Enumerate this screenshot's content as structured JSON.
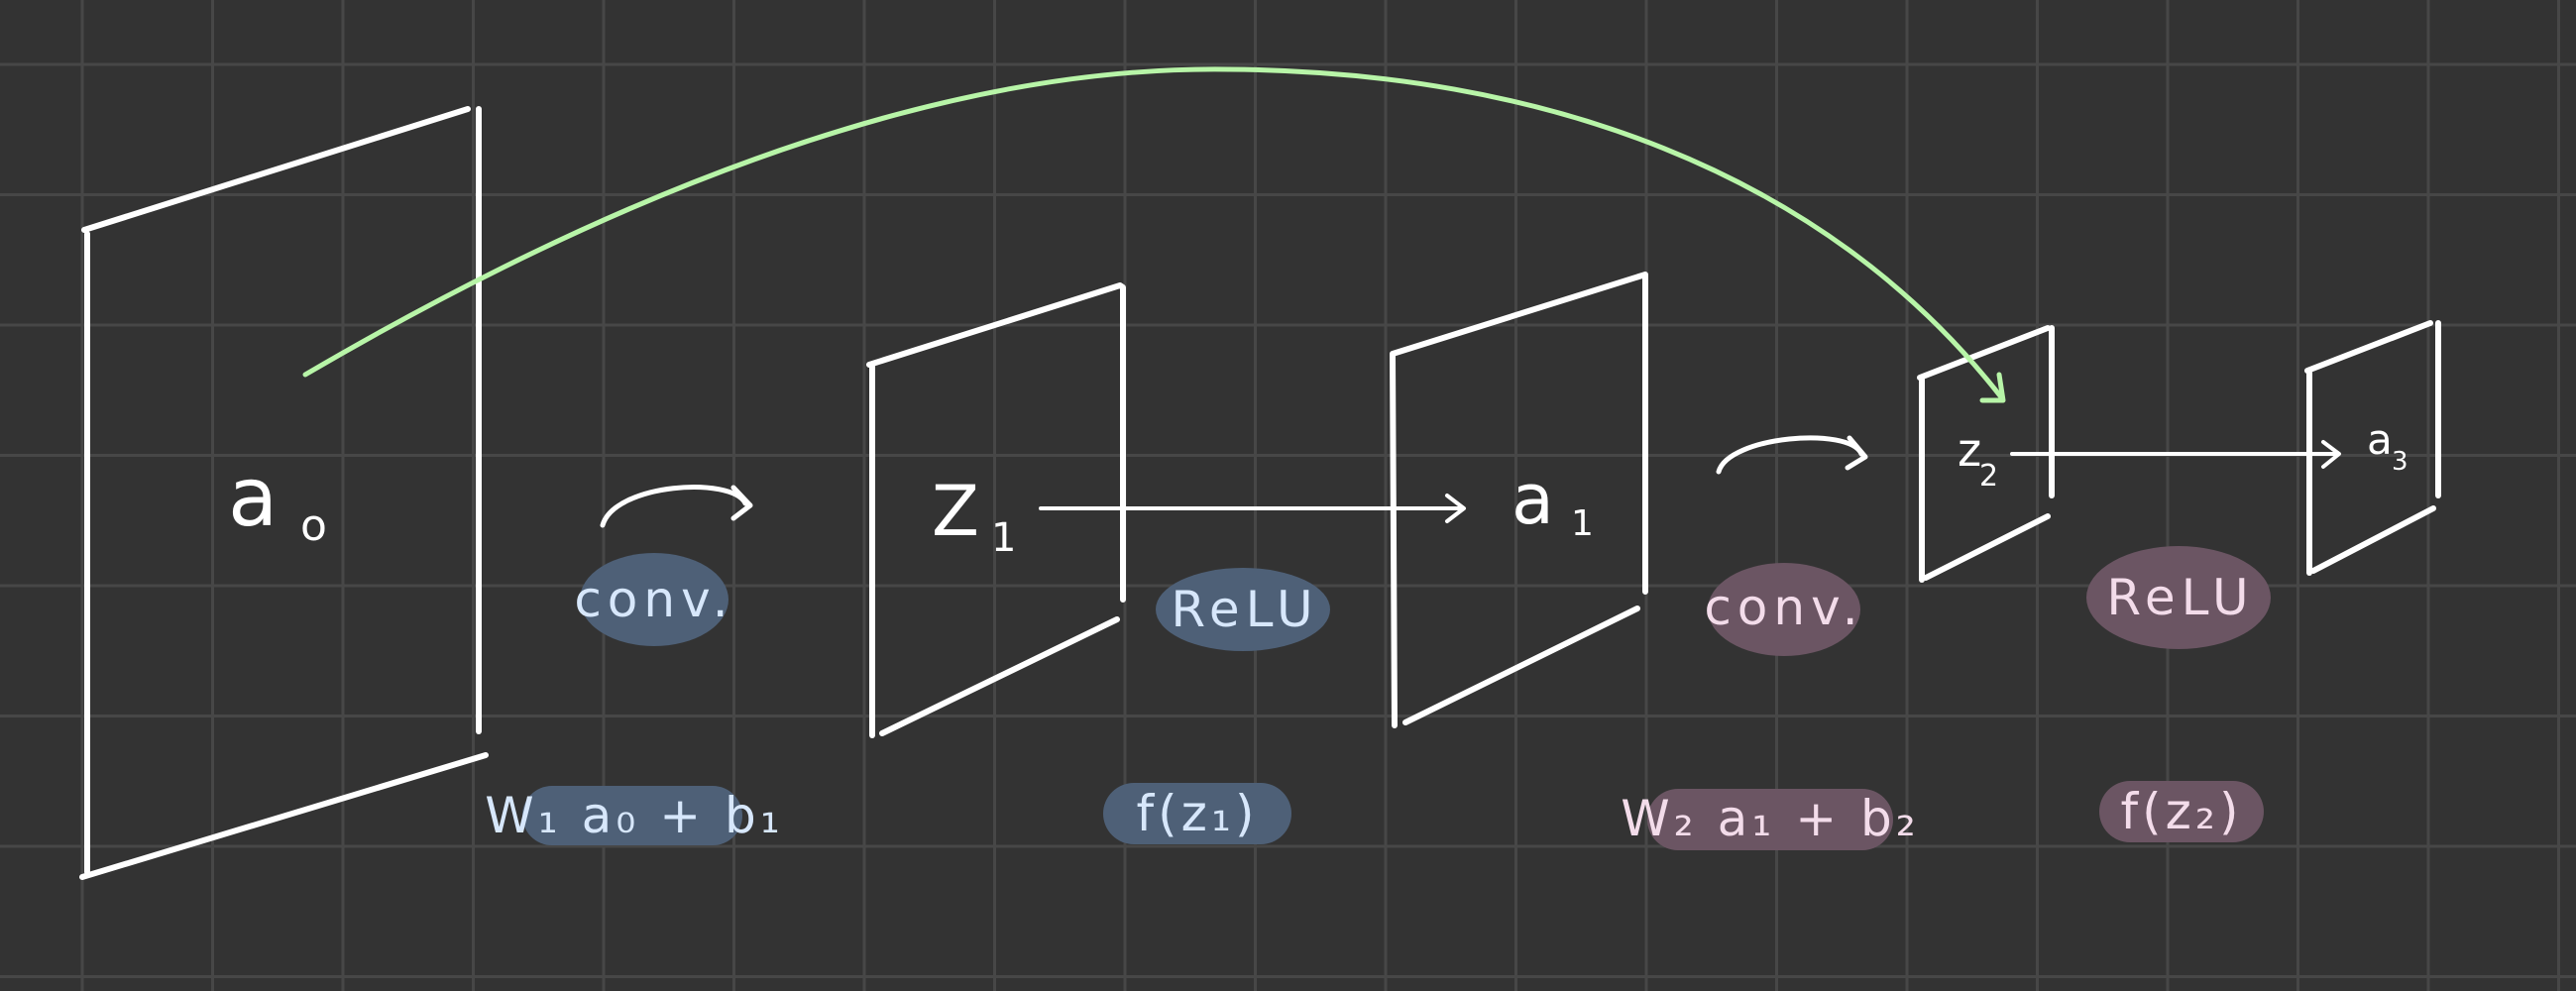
{
  "colors": {
    "background": "#333333",
    "grid": "#474747",
    "stroke": "#ffffff",
    "blue_pill": "#4e6077",
    "blue_text": "#d7e7fb",
    "purple_pill": "#6b5563",
    "purple_text": "#f3dcea",
    "skip_arrow": "#b8f5a8"
  },
  "layers": {
    "a0": {
      "label": "a",
      "sub": "o"
    },
    "z1": {
      "label": "Z",
      "sub": "1"
    },
    "a1": {
      "label": "a",
      "sub": "1"
    },
    "z2": {
      "label": "z",
      "sub": "2"
    },
    "a3": {
      "label": "a",
      "sub": "3"
    }
  },
  "ops": {
    "conv1": {
      "label": "conv.",
      "formula": "W₁ a₀ + b₁"
    },
    "relu1": {
      "label": "ReLU",
      "formula": "f(z₁)"
    },
    "conv2": {
      "label": "conv.",
      "formula": "W₂ a₁ + b₂"
    },
    "relu2": {
      "label": "ReLU",
      "formula": "f(z₂)"
    }
  }
}
